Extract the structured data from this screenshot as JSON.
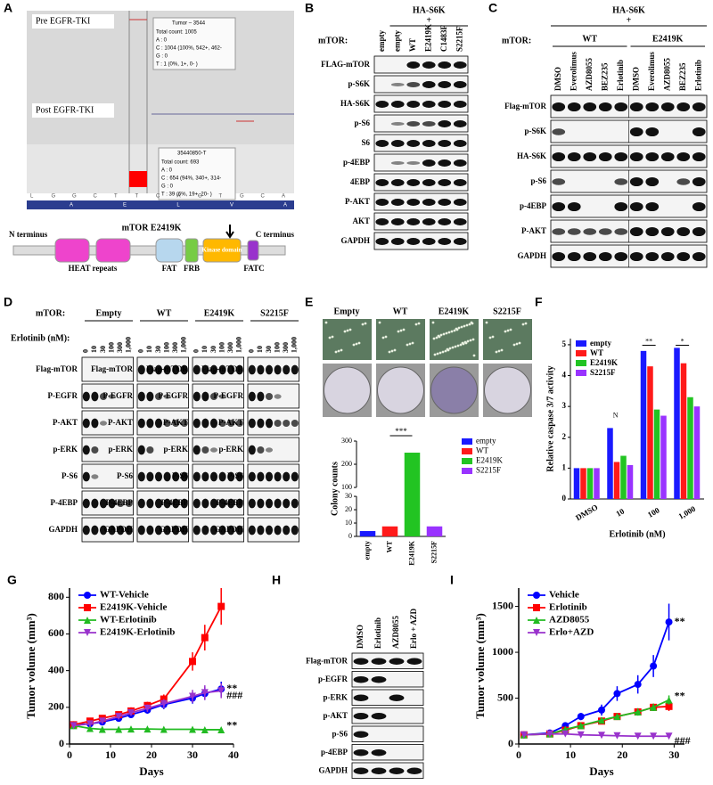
{
  "panel_labels": [
    "A",
    "B",
    "C",
    "D",
    "E",
    "F",
    "G",
    "H",
    "I"
  ],
  "panel_a": {
    "pre": "Pre EGFR-TKI",
    "post": "Post EGFR-TKI",
    "popup_pre": {
      "title": "Tumor – 3544",
      "lines": [
        "Total count: 1005",
        "A : 0",
        "C : 1004 (100%, 542+, 462-",
        "G : 0",
        "T : 1 (0%, 1+, 0- )"
      ]
    },
    "popup_post": {
      "title": "35440850-T",
      "lines": [
        "Total count: 693",
        "A : 0",
        "C : 654 (94%, 340+, 314-",
        "G : 0",
        "T : 39 (6%, 19+, 20- )"
      ]
    },
    "bases": [
      "L",
      "G",
      "G",
      "C",
      "T",
      "T",
      "C",
      "A",
      "G",
      "T",
      "G",
      "C",
      "A"
    ],
    "amino_acids": [
      "A",
      "E",
      "L",
      "V",
      "A"
    ],
    "domain": {
      "title": "mTOR E2419K",
      "n": "N terminus",
      "c": "C terminus",
      "heat": "HEAT repeats",
      "fat": "FAT",
      "frb": "FRB",
      "kinase": "Kinase domain",
      "fatc": "FATC"
    }
  },
  "panel_b": {
    "header": "HA-S6K",
    "plus": "+",
    "mtor_label": "mTOR:",
    "lanes": [
      "empty",
      "empty",
      "WT",
      "E2419K",
      "C1483F",
      "S2215F"
    ],
    "rows": [
      "FLAG-mTOR",
      "p-S6K",
      "HA-S6K",
      "p-S6",
      "S6",
      "p-4EBP",
      "4EBP",
      "P-AKT",
      "AKT",
      "GAPDH"
    ]
  },
  "panel_c": {
    "header": "HA-S6K",
    "plus": "+",
    "mtor_label": "mTOR:",
    "groups": [
      "WT",
      "E2419K"
    ],
    "lanes": [
      "DMSO",
      "Everolimus",
      "AZD8055",
      "BEZ235",
      "Erlotinib",
      "DMSO",
      "Everolimus",
      "AZD8055",
      "BEZ235",
      "Erlotinib"
    ],
    "rows": [
      "Flag-mTOR",
      "p-S6K",
      "HA-S6K",
      "p-S6",
      "p-4EBP",
      "P-AKT",
      "GAPDH"
    ]
  },
  "panel_d": {
    "mtor_label": "mTOR:",
    "groups": [
      "Empty",
      "WT",
      "E2419K",
      "S2215F"
    ],
    "erlotinib_label": "Erlotinib (nM):",
    "doses": [
      "0",
      "10",
      "30",
      "100",
      "300",
      "1,000"
    ],
    "rows": [
      "Flag-mTOR",
      "P-EGFR",
      "P-AKT",
      "p-ERK",
      "P-S6",
      "P-4EBP",
      "GAPDH"
    ]
  },
  "panel_e": {
    "images": [
      "Empty",
      "WT",
      "E2419K",
      "S2215F"
    ]
  },
  "panel_h": {
    "lanes": [
      "DMSO",
      "Erlotinib",
      "AZD8055",
      "Erlo + AZD"
    ],
    "rows": [
      "Flag-mTOR",
      "p-EGFR",
      "p-ERK",
      "p-AKT",
      "p-S6",
      "p-4EBP",
      "GAPDH"
    ]
  },
  "chart_data": [
    {
      "type": "bar",
      "ylabel": "Colony counts",
      "categories": [
        "empty",
        "WT",
        "E2419K",
        "S2215F"
      ],
      "values": [
        4,
        7.5,
        250,
        7.5
      ],
      "colors": [
        "#1a1aff",
        "#ff1a1a",
        "#22c422",
        "#9933ff"
      ],
      "ylim": [
        0,
        300
      ],
      "axis_break": [
        30,
        100
      ],
      "yticks": [
        0,
        10,
        20,
        30,
        100,
        200,
        300
      ],
      "annotations": [
        "***"
      ],
      "legend": "right"
    },
    {
      "type": "grouped_bar",
      "ylabel": "Relative caspase 3/7 activity",
      "xlabel": "Erlotinib (nM)",
      "categories": [
        "DMSO",
        "10",
        "100",
        "1,000"
      ],
      "series": [
        {
          "name": "empty",
          "color": "#1a1aff",
          "values": [
            1,
            2.3,
            4.8,
            4.9
          ]
        },
        {
          "name": "WT",
          "color": "#ff1a1a",
          "values": [
            1,
            1.2,
            4.3,
            4.4
          ]
        },
        {
          "name": "E2419K",
          "color": "#22c422",
          "values": [
            1,
            1.4,
            2.9,
            3.3
          ]
        },
        {
          "name": "S2215F",
          "color": "#9933ff",
          "values": [
            1,
            1.1,
            2.7,
            3.0
          ]
        }
      ],
      "ylim": [
        0,
        5.2
      ],
      "yticks": [
        0,
        1,
        2,
        3,
        4,
        5
      ],
      "annotations": [
        "N",
        "**",
        "*"
      ],
      "legend": "upper left"
    },
    {
      "type": "line",
      "xlabel": "Days",
      "ylabel": "Tumor volume (mm³)",
      "x": [
        1,
        5,
        8,
        12,
        15,
        19,
        23,
        30,
        33,
        37
      ],
      "series": [
        {
          "name": "WT-Vehicle",
          "color": "#0000ff",
          "marker": "circle",
          "values": [
            105,
            110,
            120,
            140,
            160,
            185,
            215,
            250,
            275,
            300
          ],
          "errors": [
            10,
            10,
            10,
            15,
            15,
            20,
            25,
            30,
            35,
            40
          ]
        },
        {
          "name": "E2419K-Vehicle",
          "color": "#ff0000",
          "marker": "square",
          "values": [
            105,
            125,
            140,
            160,
            180,
            210,
            245,
            450,
            580,
            750
          ],
          "errors": [
            10,
            10,
            15,
            15,
            20,
            20,
            25,
            50,
            70,
            100
          ]
        },
        {
          "name": "WT-Erlotinib",
          "color": "#22bb22",
          "marker": "triangle",
          "values": [
            100,
            85,
            80,
            80,
            82,
            82,
            80,
            80,
            78,
            78
          ],
          "errors": [
            8,
            8,
            8,
            8,
            8,
            8,
            8,
            8,
            8,
            8
          ]
        },
        {
          "name": "E2419K-Erlotinib",
          "color": "#9933cc",
          "marker": "triangle-down",
          "values": [
            100,
            110,
            125,
            150,
            170,
            195,
            220,
            260,
            280,
            290
          ],
          "errors": [
            10,
            10,
            10,
            15,
            15,
            20,
            25,
            35,
            40,
            40
          ]
        }
      ],
      "xlim": [
        0,
        40
      ],
      "xticks": [
        0,
        10,
        20,
        30,
        40
      ],
      "ylim": [
        0,
        850
      ],
      "yticks": [
        0,
        200,
        400,
        600,
        800
      ],
      "annotations": [
        "**",
        "**",
        "###"
      ],
      "legend": "upper left"
    },
    {
      "type": "line",
      "xlabel": "Days",
      "ylabel": "Tumor volume (mm³)",
      "x": [
        1,
        6,
        9,
        12,
        16,
        19,
        23,
        26,
        29
      ],
      "series": [
        {
          "name": "Vehicle",
          "color": "#0000ff",
          "marker": "circle",
          "values": [
            100,
            120,
            200,
            300,
            370,
            550,
            650,
            850,
            1330
          ],
          "errors": [
            10,
            15,
            30,
            40,
            60,
            80,
            100,
            120,
            200
          ]
        },
        {
          "name": "Erlotinib",
          "color": "#ff0000",
          "marker": "square",
          "values": [
            100,
            110,
            150,
            200,
            250,
            300,
            350,
            400,
            410
          ],
          "errors": [
            10,
            10,
            20,
            20,
            30,
            30,
            40,
            40,
            50
          ]
        },
        {
          "name": "AZD8055",
          "color": "#22bb22",
          "marker": "triangle",
          "values": [
            100,
            110,
            160,
            200,
            260,
            300,
            350,
            400,
            480
          ],
          "errors": [
            10,
            10,
            20,
            20,
            30,
            30,
            40,
            40,
            50
          ]
        },
        {
          "name": "Erlo+AZD",
          "color": "#9933cc",
          "marker": "triangle-down",
          "values": [
            100,
            110,
            110,
            100,
            95,
            90,
            85,
            85,
            85
          ],
          "errors": [
            8,
            8,
            8,
            8,
            8,
            8,
            8,
            8,
            8
          ]
        }
      ],
      "xlim": [
        0,
        32
      ],
      "xticks": [
        0,
        10,
        20,
        30
      ],
      "ylim": [
        0,
        1700
      ],
      "yticks": [
        0,
        500,
        1000,
        1500
      ],
      "annotations": [
        "**",
        "**",
        "###"
      ],
      "legend": "upper left"
    }
  ]
}
